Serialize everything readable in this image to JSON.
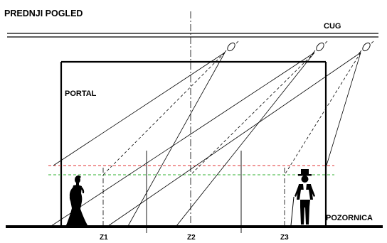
{
  "title": "PREDNJI POGLED",
  "labels": {
    "cug": "CUG",
    "portal": "PORTAL",
    "pozornica": "POZORNICA",
    "zones": [
      "Z1",
      "Z2",
      "Z3"
    ]
  },
  "colors": {
    "lines": "#000000",
    "red_dashed_line": "#e03030",
    "green_dashed_line": "#30b030",
    "background": "#ffffff"
  },
  "figures": {
    "left": "woman-silhouette",
    "right": "man-in-top-hat"
  }
}
